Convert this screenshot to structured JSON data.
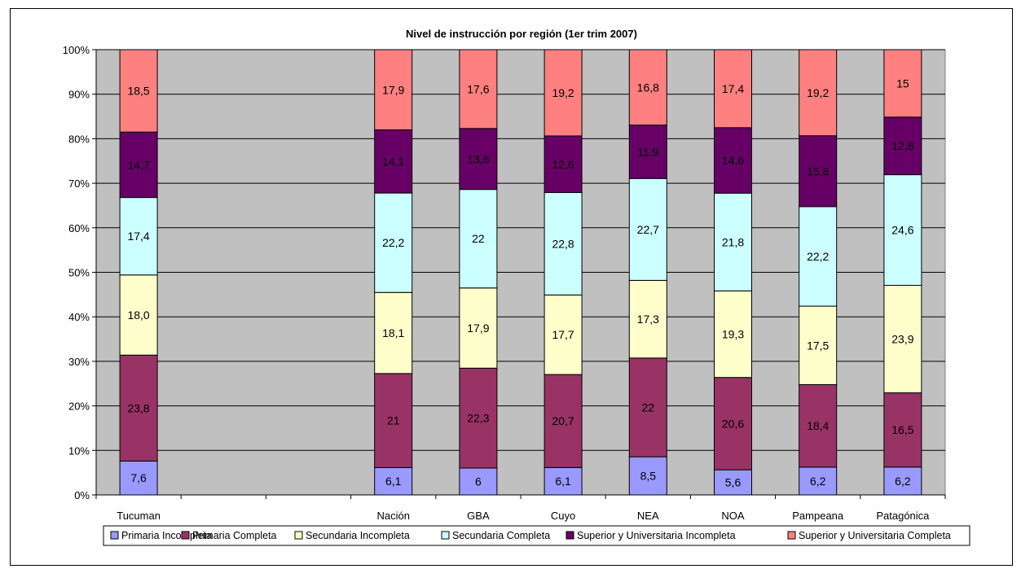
{
  "chart_data": {
    "type": "bar",
    "stacked": true,
    "percent": true,
    "title": "Nivel de instrucción por región (1er trim 2007)",
    "categories": [
      "Tucuman",
      "",
      "",
      "Nación",
      "GBA",
      "Cuyo",
      "NEA",
      "NOA",
      "Pampeana",
      "Patagónica"
    ],
    "y_ticks": [
      "0%",
      "10%",
      "20%",
      "30%",
      "40%",
      "50%",
      "60%",
      "70%",
      "80%",
      "90%",
      "100%"
    ],
    "ylim": [
      0,
      100
    ],
    "grid": true,
    "legend_position": "bottom",
    "series": [
      {
        "name": "Primaria Incompleta",
        "color": "#9999ff",
        "values": [
          7.6,
          null,
          null,
          6.1,
          6,
          6.1,
          8.5,
          5.6,
          6.2,
          6.2
        ],
        "labels": [
          "7,6",
          "",
          "",
          "6,1",
          "6",
          "6,1",
          "8,5",
          "5,6",
          "6,2",
          "6,2"
        ]
      },
      {
        "name": "Primaria Completa",
        "color": "#993366",
        "values": [
          23.8,
          null,
          null,
          21,
          22.3,
          20.7,
          22,
          20.6,
          18.4,
          16.5
        ],
        "labels": [
          "23,8",
          "",
          "",
          "21",
          "22,3",
          "20,7",
          "22",
          "20,6",
          "18,4",
          "16,5"
        ]
      },
      {
        "name": "Secundaria Incompleta",
        "color": "#ffffcc",
        "values": [
          18.0,
          null,
          null,
          18.1,
          17.9,
          17.7,
          17.3,
          19.3,
          17.5,
          23.9
        ],
        "labels": [
          "18,0",
          "",
          "",
          "18,1",
          "17,9",
          "17,7",
          "17,3",
          "19,3",
          "17,5",
          "23,9"
        ]
      },
      {
        "name": "Secundaria Completa",
        "color": "#ccffff",
        "values": [
          17.4,
          null,
          null,
          22.2,
          22,
          22.8,
          22.7,
          21.8,
          22.2,
          24.6
        ],
        "labels": [
          "17,4",
          "",
          "",
          "22,2",
          "22",
          "22,8",
          "22,7",
          "21,8",
          "22,2",
          "24,6"
        ]
      },
      {
        "name": "Superior y Universitaria Incompleta",
        "color": "#660066",
        "values": [
          14.7,
          null,
          null,
          14.1,
          13.6,
          12.6,
          11.9,
          14.6,
          15.8,
          12.8
        ],
        "labels": [
          "14,7",
          "",
          "",
          "14,1",
          "13,6",
          "12,6",
          "11,9",
          "14,6",
          "15,8",
          "12,8"
        ]
      },
      {
        "name": "Superior y Universitaria Completa",
        "color": "#ff8080",
        "values": [
          18.5,
          null,
          null,
          17.9,
          17.6,
          19.2,
          16.8,
          17.4,
          19.2,
          15
        ],
        "labels": [
          "18,5",
          "",
          "",
          "17,9",
          "17,6",
          "19,2",
          "16,8",
          "17,4",
          "19,2",
          "15"
        ]
      }
    ],
    "plot_background": "#c0c0c0"
  }
}
